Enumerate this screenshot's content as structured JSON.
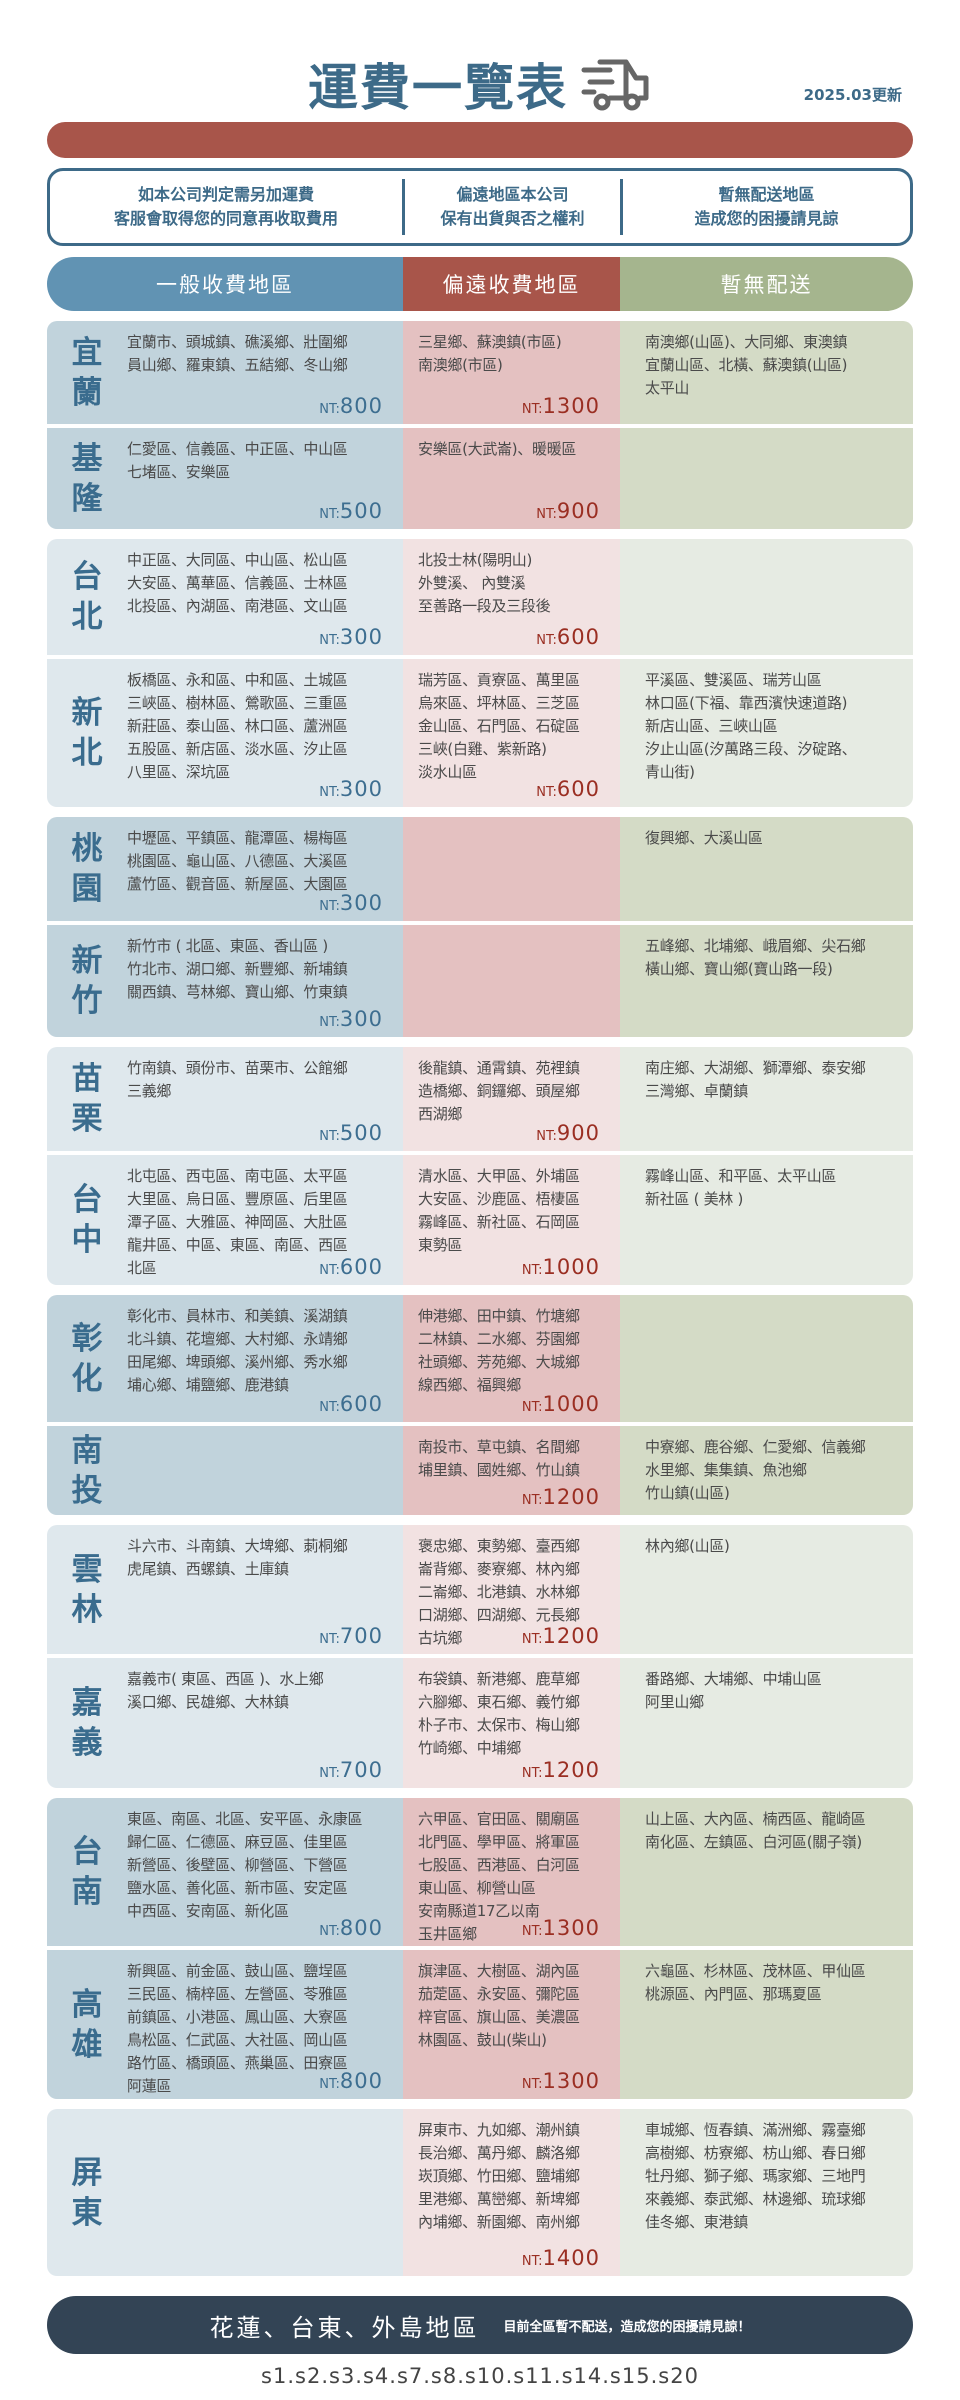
{
  "header": {
    "title": "運費一覽表",
    "truck_icon": "truck-icon",
    "updated": "2025.03更新"
  },
  "info": [
    [
      "如本公司判定需另加運費",
      "客服會取得您的同意再收取費用"
    ],
    [
      "偏遠地區本公司",
      "保有出貨與否之權利"
    ],
    [
      "暫無配送地區",
      "造成您的困擾請見諒"
    ]
  ],
  "columns": [
    "一般收費地區",
    "偏遠收費地區",
    "暫無配送"
  ],
  "colors": {
    "general": "#6193b3",
    "remote": "#a8554a",
    "none": "#a5b58e",
    "footer": "#334455",
    "title": "#3d6a88"
  },
  "groups": [
    {
      "rows": [
        {
          "label": [
            "宜",
            "蘭"
          ],
          "general": {
            "lines": [
              "宜蘭市、頭城鎮、礁溪鄉、壯圍鄉",
              "員山鄉、羅東鎮、五結鄉、冬山鄉"
            ],
            "nt": "NT:",
            "price": "800"
          },
          "remote": {
            "lines": [
              "三星鄉、蘇澳鎮(市區)",
              "南澳鄉(市區)"
            ],
            "nt": "NT:",
            "price": "1300"
          },
          "none": {
            "lines": [
              "南澳鄉(山區)、大同鄉、東澳鎮",
              "宜蘭山區、北橫、蘇澳鎮(山區)",
              "太平山"
            ]
          }
        },
        {
          "label": [
            "基",
            "隆"
          ],
          "general": {
            "lines": [
              "仁愛區、信義區、中正區、中山區",
              "七堵區、安樂區"
            ],
            "nt": "NT:",
            "price": "500"
          },
          "remote": {
            "lines": [
              "安樂區(大武崙)、暖暖區"
            ],
            "nt": "NT:",
            "price": "900"
          },
          "none": {
            "lines": []
          }
        }
      ]
    },
    {
      "rows": [
        {
          "label": [
            "台",
            "北"
          ],
          "general": {
            "lines": [
              "中正區、大同區、中山區、松山區",
              "大安區、萬華區、信義區、士林區",
              "北投區、內湖區、南港區、文山區"
            ],
            "nt": "NT:",
            "price": "300"
          },
          "remote": {
            "lines": [
              "北投士林(陽明山)",
              "外雙溪、 內雙溪",
              "至善路一段及三段後"
            ],
            "nt": "NT:",
            "price": "600"
          },
          "none": {
            "lines": []
          }
        },
        {
          "label": [
            "新",
            "北"
          ],
          "general": {
            "lines": [
              "板橋區、永和區、中和區、土城區",
              "三峽區、樹林區、鶯歌區、三重區",
              "新莊區、泰山區、林口區、蘆洲區",
              "五股區、新店區、淡水區、汐止區",
              "八里區、深坑區"
            ],
            "nt": "NT:",
            "price": "300"
          },
          "remote": {
            "lines": [
              "瑞芳區、貢寮區、萬里區",
              "烏來區、坪林區、三芝區",
              "金山區、石門區、石碇區",
              "三峽(白雞、紫新路)",
              "淡水山區"
            ],
            "nt": "NT:",
            "price": "600"
          },
          "none": {
            "lines": [
              "平溪區、雙溪區、瑞芳山區",
              "林口區(下福、靠西濱快速道路)",
              "新店山區、三峽山區",
              "汐止山區(汐萬路三段、汐碇路、",
              "青山街)"
            ]
          }
        }
      ]
    },
    {
      "rows": [
        {
          "label": [
            "桃",
            "園"
          ],
          "general": {
            "lines": [
              "中壢區、平鎮區、龍潭區、楊梅區",
              "桃園區、龜山區、八德區、大溪區",
              "蘆竹區、觀音區、新屋區、大園區"
            ],
            "nt": "NT:",
            "price": "300"
          },
          "remote": {
            "lines": []
          },
          "none": {
            "lines": [
              "復興鄉、大溪山區"
            ]
          }
        },
        {
          "label": [
            "新",
            "竹"
          ],
          "general": {
            "lines": [
              "新竹市 ( 北區、東區、香山區 )",
              "竹北市、湖口鄉、新豐鄉、新埔鎮",
              "關西鎮、芎林鄉、寶山鄉、竹東鎮"
            ],
            "nt": "NT:",
            "price": "300"
          },
          "remote": {
            "lines": []
          },
          "none": {
            "lines": [
              "五峰鄉、北埔鄉、峨眉鄉、尖石鄉",
              "橫山鄉、寶山鄉(寶山路一段)"
            ]
          }
        }
      ]
    },
    {
      "rows": [
        {
          "label": [
            "苗",
            "栗"
          ],
          "general": {
            "lines": [
              "竹南鎮、頭份市、苗栗市、公館鄉",
              "三義鄉"
            ],
            "nt": "NT:",
            "price": "500"
          },
          "remote": {
            "lines": [
              "後龍鎮、通霄鎮、苑裡鎮",
              "造橋鄉、銅鑼鄉、頭屋鄉",
              "西湖鄉"
            ],
            "nt": "NT:",
            "price": "900"
          },
          "none": {
            "lines": [
              "南庄鄉、大湖鄉、獅潭鄉、泰安鄉",
              "三灣鄉、卓蘭鎮"
            ]
          }
        },
        {
          "label": [
            "台",
            "中"
          ],
          "general": {
            "lines": [
              "北屯區、西屯區、南屯區、太平區",
              "大里區、烏日區、豐原區、后里區",
              "潭子區、大雅區、神岡區、大肚區",
              "龍井區、中區、東區、南區、西區",
              "北區"
            ],
            "nt": "NT:",
            "price": "600"
          },
          "remote": {
            "lines": [
              "清水區、大甲區、外埔區",
              "大安區、沙鹿區、梧棲區",
              "霧峰區、新社區、石岡區",
              "東勢區"
            ],
            "nt": "NT:",
            "price": "1000"
          },
          "none": {
            "lines": [
              "霧峰山區、和平區、太平山區",
              "新社區 ( 美林 )"
            ]
          }
        }
      ]
    },
    {
      "rows": [
        {
          "label": [
            "彰",
            "化"
          ],
          "general": {
            "lines": [
              "彰化市、員林市、和美鎮、溪湖鎮",
              "北斗鎮、花壇鄉、大村鄉、永靖鄉",
              "田尾鄉、埤頭鄉、溪州鄉、秀水鄉",
              "埔心鄉、埔鹽鄉、鹿港鎮"
            ],
            "nt": "NT:",
            "price": "600"
          },
          "remote": {
            "lines": [
              "伸港鄉、田中鎮、竹塘鄉",
              "二林鎮、二水鄉、芬園鄉",
              "社頭鄉、芳苑鄉、大城鄉",
              "線西鄉、福興鄉"
            ],
            "nt": "NT:",
            "price": "1000"
          },
          "none": {
            "lines": []
          }
        },
        {
          "label": [
            "南",
            "投"
          ],
          "general": {
            "lines": []
          },
          "remote": {
            "lines": [
              "南投市、草屯鎮、名間鄉",
              "埔里鎮、國姓鄉、竹山鎮"
            ],
            "nt": "NT:",
            "price": "1200"
          },
          "none": {
            "lines": [
              "中寮鄉、鹿谷鄉、仁愛鄉、信義鄉",
              "水里鄉、集集鎮、魚池鄉",
              "竹山鎮(山區)"
            ]
          }
        }
      ]
    },
    {
      "rows": [
        {
          "label": [
            "雲",
            "林"
          ],
          "general": {
            "lines": [
              "斗六市、斗南鎮、大埤鄉、莿桐鄉",
              "虎尾鎮、西螺鎮、土庫鎮"
            ],
            "nt": "NT:",
            "price": "700"
          },
          "remote": {
            "lines": [
              "褒忠鄉、東勢鄉、臺西鄉",
              "崙背鄉、麥寮鄉、林內鄉",
              "二崙鄉、北港鎮、水林鄉",
              "口湖鄉、四湖鄉、元長鄉",
              "古坑鄉"
            ],
            "nt": "NT:",
            "price": "1200"
          },
          "none": {
            "lines": [
              "林內鄉(山區)"
            ]
          }
        },
        {
          "label": [
            "嘉",
            "義"
          ],
          "general": {
            "lines": [
              "嘉義市( 東區、西區 )、水上鄉",
              "溪口鄉、民雄鄉、大林鎮"
            ],
            "nt": "NT:",
            "price": "700"
          },
          "remote": {
            "lines": [
              "布袋鎮、新港鄉、鹿草鄉",
              "六腳鄉、東石鄉、義竹鄉",
              "朴子市、太保市、梅山鄉",
              "竹崎鄉、中埔鄉"
            ],
            "nt": "NT:",
            "price": "1200"
          },
          "none": {
            "lines": [
              "番路鄉、大埔鄉、中埔山區",
              "阿里山鄉"
            ]
          }
        }
      ]
    },
    {
      "rows": [
        {
          "label": [
            "台",
            "南"
          ],
          "general": {
            "lines": [
              "東區、南區、北區、安平區、永康區",
              "歸仁區、仁德區、麻豆區、佳里區",
              "新營區、後壁區、柳營區、下營區",
              "鹽水區、善化區、新市區、安定區",
              "中西區、安南區、新化區"
            ],
            "nt": "NT:",
            "price": "800"
          },
          "remote": {
            "lines": [
              "六甲區、官田區、關廟區",
              "北門區、學甲區、將軍區",
              "七股區、西港區、白河區",
              "東山區、柳營山區",
              "安南縣道17乙以南",
              "玉井區鄉"
            ],
            "nt": "NT:",
            "price": "1300"
          },
          "none": {
            "lines": [
              "山上區、大內區、楠西區、龍崎區",
              "南化區、左鎮區、白河區(關子嶺)"
            ]
          }
        },
        {
          "label": [
            "高",
            "雄"
          ],
          "general": {
            "lines": [
              "新興區、前金區、鼓山區、鹽埕區",
              "三民區、楠梓區、左營區、苓雅區",
              "前鎮區、小港區、鳳山區、大寮區",
              "鳥松區、仁武區、大社區、岡山區",
              "路竹區、橋頭區、燕巢區、田寮區",
              "阿蓮區"
            ],
            "nt": "NT:",
            "price": "800"
          },
          "remote": {
            "lines": [
              "旗津區、大樹區、湖內區",
              "茄萣區、永安區、彌陀區",
              "梓官區、旗山區、美濃區",
              "林園區、鼓山(柴山)"
            ],
            "nt": "NT:",
            "price": "1300"
          },
          "none": {
            "lines": [
              "六龜區、杉林區、茂林區、甲仙區",
              "桃源區、內門區、那瑪夏區"
            ]
          }
        }
      ]
    },
    {
      "rows": [
        {
          "label": [
            "屏",
            "東"
          ],
          "general": {
            "lines": []
          },
          "remote": {
            "lines": [
              "屏東市、九如鄉、潮州鎮",
              "長治鄉、萬丹鄉、麟洛鄉",
              "崁頂鄉、竹田鄉、鹽埔鄉",
              "里港鄉、萬巒鄉、新埤鄉",
              "內埔鄉、新園鄉、南州鄉"
            ],
            "nt": "NT:",
            "price": "1400"
          },
          "none": {
            "lines": [
              "車城鄉、恆春鎮、滿洲鄉、霧臺鄉",
              "高樹鄉、枋寮鄉、枋山鄉、春日鄉",
              "牡丹鄉、獅子鄉、瑪家鄉、三地門",
              "來義鄉、泰武鄉、林邊鄉、琉球鄉",
              "佳冬鄉、東港鎮"
            ]
          }
        }
      ]
    }
  ],
  "footer": {
    "title": "花蓮、台東、外島地區",
    "note": "目前全區暫不配送，造成您的困擾請見諒！"
  },
  "codes": "s1.s2.s3.s4.s7.s8.s10.s11.s14.s15.s20"
}
